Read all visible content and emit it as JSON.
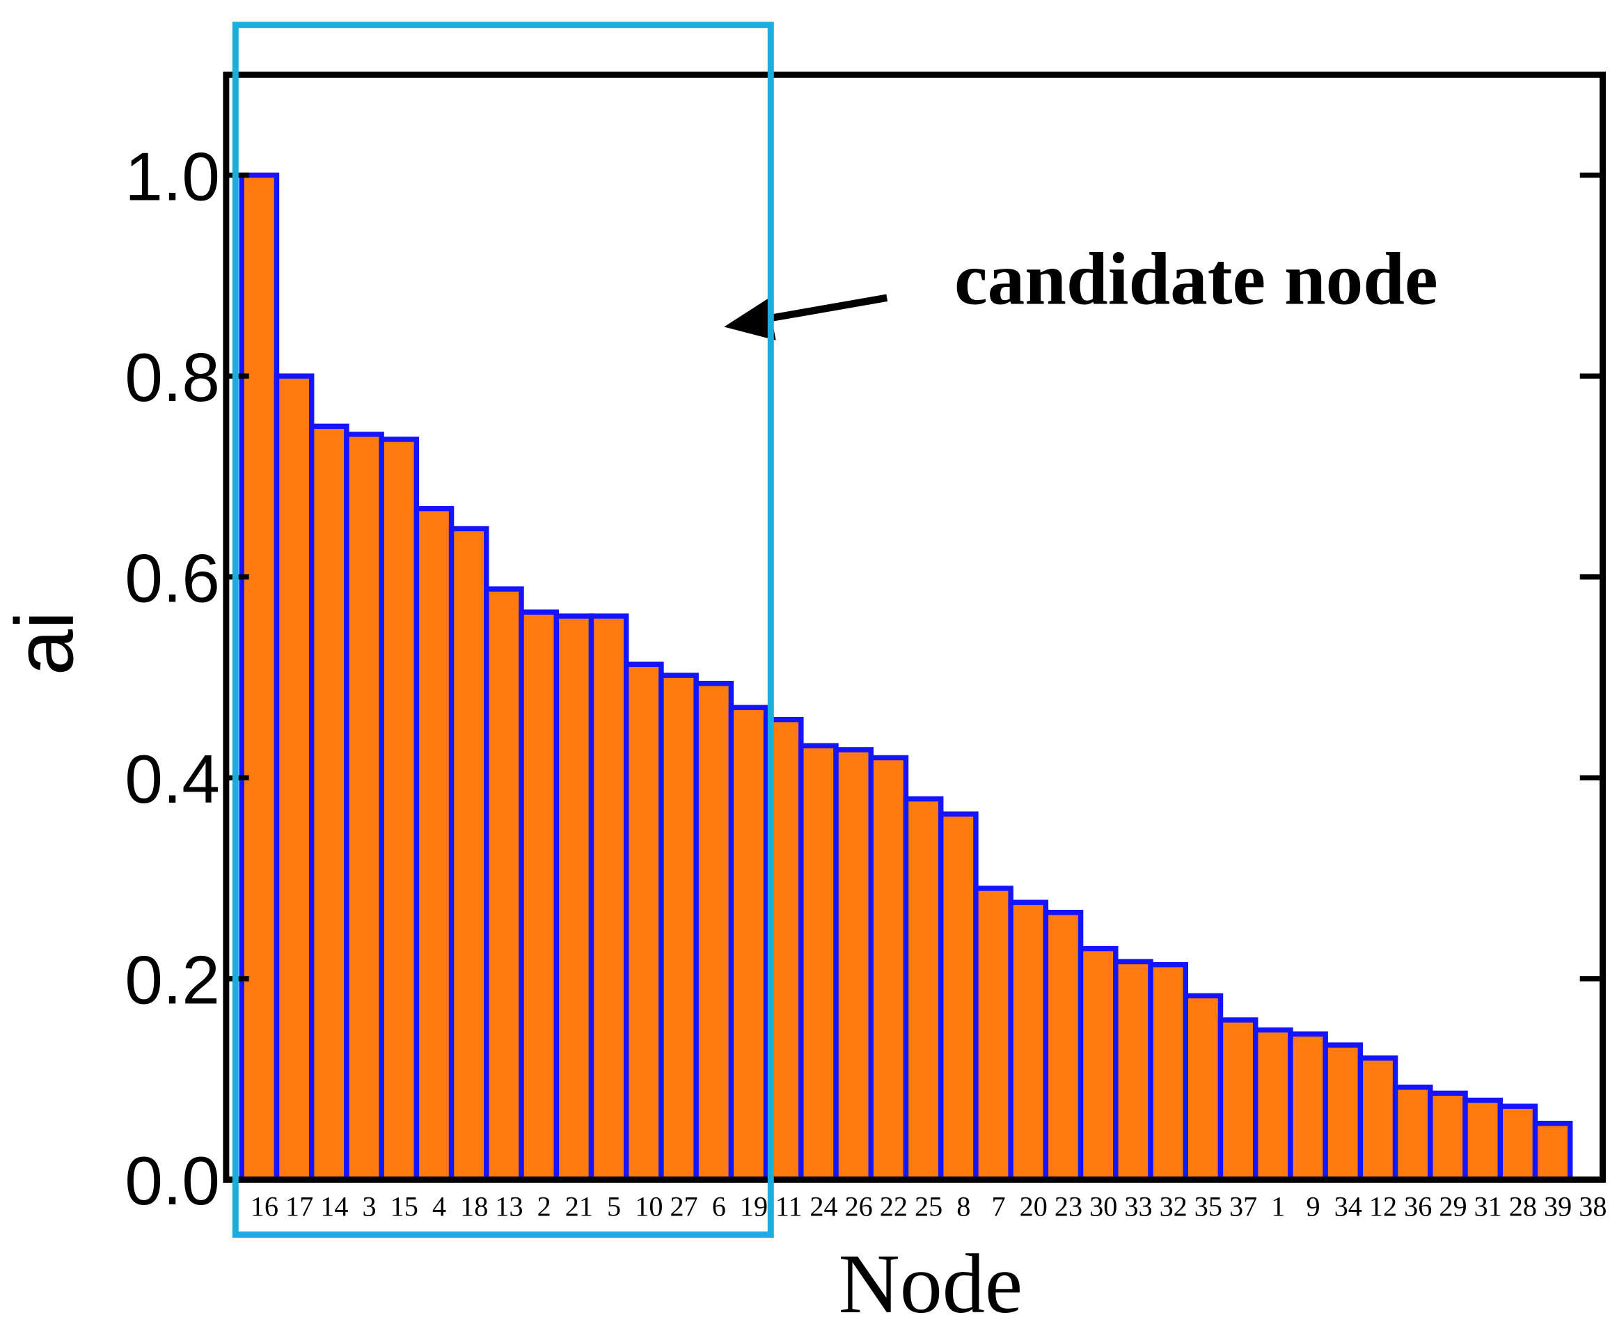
{
  "chart_data": {
    "type": "bar",
    "xlabel": "Node",
    "ylabel": "ai",
    "annotation": "candidate node",
    "categories": [
      "16",
      "17",
      "14",
      "3",
      "15",
      "4",
      "18",
      "13",
      "2",
      "21",
      "5",
      "10",
      "27",
      "6",
      "19",
      "11",
      "24",
      "26",
      "22",
      "25",
      "8",
      "7",
      "20",
      "23",
      "30",
      "33",
      "32",
      "35",
      "37",
      "1",
      "9",
      "34",
      "12",
      "36",
      "29",
      "31",
      "28",
      "39",
      "38"
    ],
    "values": [
      1.0,
      0.8,
      0.75,
      0.742,
      0.737,
      0.668,
      0.648,
      0.588,
      0.565,
      0.561,
      0.561,
      0.513,
      0.502,
      0.494,
      0.47,
      0.458,
      0.432,
      0.428,
      0.42,
      0.379,
      0.364,
      0.29,
      0.276,
      0.266,
      0.23,
      0.217,
      0.214,
      0.183,
      0.159,
      0.149,
      0.145,
      0.134,
      0.121,
      0.092,
      0.086,
      0.079,
      0.073,
      0.056,
      0
    ],
    "color": "#ff7b0f",
    "edge_color": "#1414ff",
    "ylim": [
      0,
      1.1
    ],
    "yticks": [
      {
        "value": 0,
        "label": "0.0"
      },
      {
        "value": 0.2,
        "label": "0.2"
      },
      {
        "value": 0.4,
        "label": "0.4"
      },
      {
        "value": 0.6,
        "label": "0.6"
      },
      {
        "value": 0.8,
        "label": "0.8"
      },
      {
        "value": 1.0,
        "label": "1.0"
      }
    ],
    "highlight_color": "#1aaee0"
  }
}
